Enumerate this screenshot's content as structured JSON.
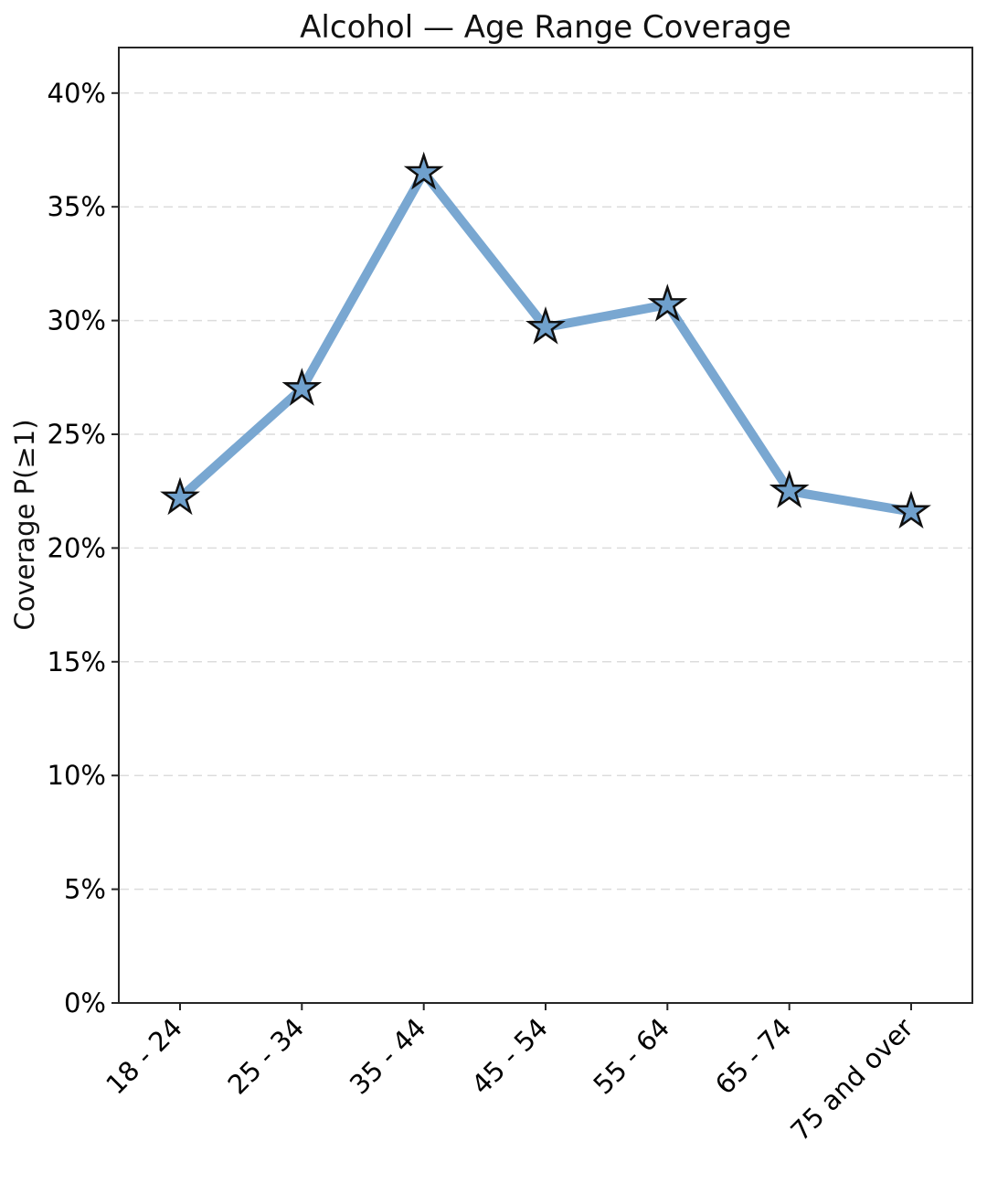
{
  "chart_data": {
    "type": "line",
    "title": "Alcohol — Age Range Coverage",
    "ylabel": "Coverage P(≥1)",
    "xlabel": "",
    "categories": [
      "18 - 24",
      "25 - 34",
      "35 - 44",
      "45 - 54",
      "55 - 64",
      "65 - 74",
      "75 and over"
    ],
    "series": [
      {
        "name": "Coverage P(≥1)",
        "values": [
          22.2,
          27.0,
          36.5,
          29.7,
          30.7,
          22.5,
          21.6
        ]
      }
    ],
    "ylim": [
      0,
      42
    ],
    "ytick_values": [
      0,
      5,
      10,
      15,
      20,
      25,
      30,
      35,
      40
    ],
    "ytick_labels": [
      "0%",
      "5%",
      "10%",
      "15%",
      "20%",
      "25%",
      "30%",
      "35%",
      "40%"
    ],
    "grid": "horizontal-dashed",
    "legend": "none",
    "marker": "star",
    "colors": {
      "line": "#79A7D1",
      "marker_fill": "#6FA0CC",
      "marker_edge": "#101010",
      "grid": "#DCDCDC",
      "spine": "#262626",
      "text": "#000000"
    }
  }
}
